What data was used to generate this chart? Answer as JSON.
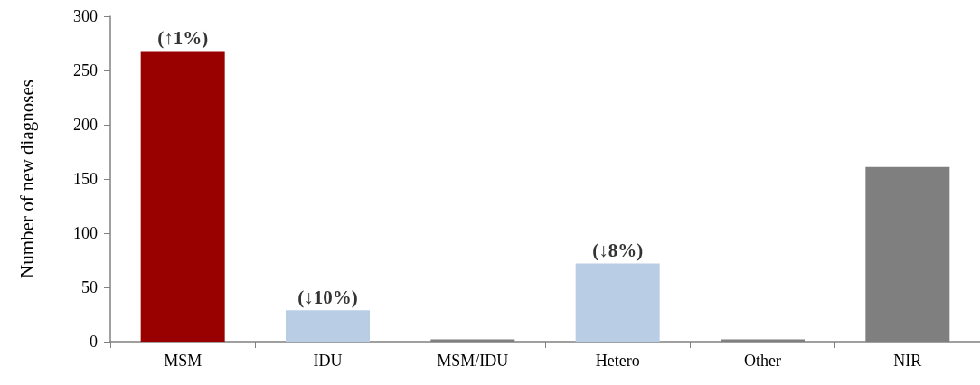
{
  "chart_data": {
    "type": "bar",
    "ylabel": "Number of new diagnoses",
    "categories": [
      "MSM",
      "IDU",
      "MSM/IDU",
      "Hetero",
      "Other",
      "NIR"
    ],
    "values": [
      268,
      29,
      2,
      72,
      2,
      161
    ],
    "colors": [
      "#990000",
      "#b9cde5",
      "#7f7f7f",
      "#b9cde5",
      "#7f7f7f",
      "#7f7f7f"
    ],
    "annotations": [
      {
        "text": "(↑1%)",
        "x": "MSM",
        "y": 268
      },
      {
        "text": "(↓10%)",
        "x": "IDU",
        "y": 29
      },
      {
        "text": "(↓8%)",
        "x": "Hetero",
        "y": 72
      }
    ],
    "ylim": [
      0,
      300
    ],
    "yticks": [
      0,
      50,
      100,
      150,
      200,
      250,
      300
    ],
    "grid": false
  }
}
